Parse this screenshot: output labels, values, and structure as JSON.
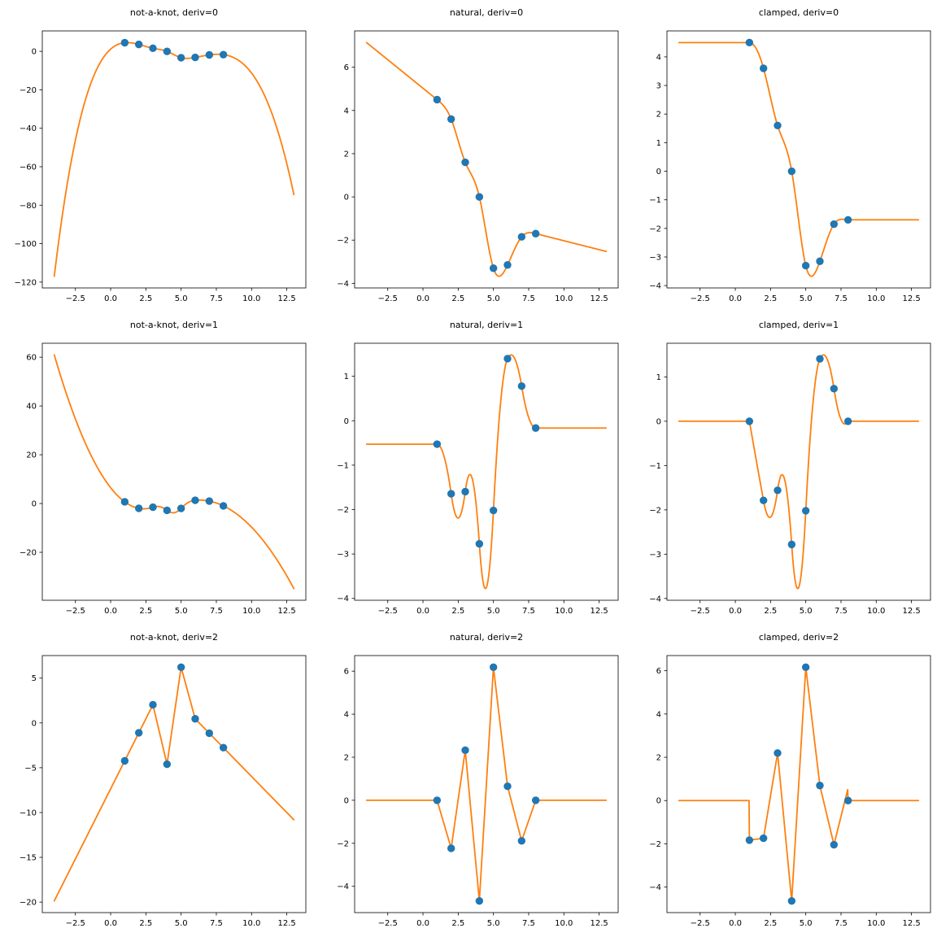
{
  "figure": {
    "background": "#ffffff",
    "rows": 3,
    "cols": 3,
    "description": "Cubic spline interpolation and its derivatives for three boundary conditions"
  },
  "style": {
    "line_color": "#ff7f0e",
    "marker_color": "#1f77b4",
    "spine_color": "#000000",
    "line_width": 1.8,
    "marker_radius": 4.7,
    "tick_length": 3.5
  },
  "spline": {
    "knots_x": [
      1,
      2,
      3,
      4,
      5,
      6,
      7,
      8
    ],
    "knots_y": [
      4.5,
      3.6,
      1.6,
      0.0,
      -3.3,
      -3.15,
      -1.85,
      -1.7
    ],
    "curve_x_range": [
      -4,
      13
    ],
    "boundary_conditions": [
      "not-a-knot",
      "natural",
      "clamped"
    ],
    "derivative_orders": [
      0,
      1,
      2
    ]
  },
  "xaxis": {
    "tick_values": [
      -2.5,
      0.0,
      2.5,
      5.0,
      7.5,
      10.0,
      12.5
    ],
    "tick_labels": [
      "−2.5",
      "0.0",
      "2.5",
      "5.0",
      "7.5",
      "10.0",
      "12.5"
    ]
  },
  "chart_data": [
    {
      "type": "line",
      "title": "not-a-knot, deriv=0",
      "bc": "not-a-knot",
      "deriv": 0,
      "points_x": [
        1,
        2,
        3,
        4,
        5,
        6,
        7,
        8
      ],
      "points_y": [
        4.5,
        3.6,
        1.6,
        0.0,
        -3.3,
        -3.15,
        -1.85,
        -1.7
      ],
      "curve_endpoints_y": [
        -117.0,
        -74.5
      ],
      "ytick_values": [
        0,
        -20,
        -40,
        -60,
        -80,
        -100,
        -120
      ],
      "ytick_labels": [
        "0",
        "−20",
        "−40",
        "−60",
        "−80",
        "−100",
        "−120"
      ]
    },
    {
      "type": "line",
      "title": "natural, deriv=0",
      "bc": "natural",
      "deriv": 0,
      "points_x": [
        1,
        2,
        3,
        4,
        5,
        6,
        7,
        8
      ],
      "points_y": [
        4.5,
        3.6,
        1.6,
        0.0,
        -3.3,
        -3.15,
        -1.85,
        -1.7
      ],
      "curve_endpoints_y": [
        7.2,
        -2.8
      ],
      "ytick_values": [
        6,
        4,
        2,
        0,
        -2,
        -4
      ],
      "ytick_labels": [
        "6",
        "4",
        "2",
        "0",
        "−2",
        "−4"
      ]
    },
    {
      "type": "line",
      "title": "clamped, deriv=0",
      "bc": "clamped",
      "deriv": 0,
      "points_x": [
        1,
        2,
        3,
        4,
        5,
        6,
        7,
        8
      ],
      "points_y": [
        4.5,
        3.6,
        1.6,
        0.0,
        -3.3,
        -3.15,
        -1.85,
        -1.7
      ],
      "curve_endpoints_y": [
        4.5,
        -1.7
      ],
      "ytick_values": [
        4,
        3,
        2,
        1,
        0,
        -1,
        -2,
        -3,
        -4
      ],
      "ytick_labels": [
        "4",
        "3",
        "2",
        "1",
        "0",
        "−1",
        "−2",
        "−3",
        "−4"
      ]
    },
    {
      "type": "line",
      "title": "not-a-knot, deriv=1",
      "bc": "not-a-knot",
      "deriv": 1,
      "points_x": [
        1,
        2,
        3,
        4,
        5,
        6,
        7,
        8
      ],
      "points_y": [
        0.69,
        -1.97,
        -1.51,
        -2.8,
        -2.0,
        1.34,
        0.99,
        -0.96
      ],
      "curve_endpoints_y": [
        61.0,
        -35.0
      ],
      "ytick_values": [
        60,
        40,
        20,
        0,
        -20
      ],
      "ytick_labels": [
        "60",
        "40",
        "20",
        "0",
        "−20"
      ]
    },
    {
      "type": "line",
      "title": "natural, deriv=1",
      "bc": "natural",
      "deriv": 1,
      "points_x": [
        1,
        2,
        3,
        4,
        5,
        6,
        7,
        8
      ],
      "points_y": [
        -0.53,
        -1.64,
        -1.6,
        -2.77,
        -2.02,
        1.4,
        0.78,
        -0.17
      ],
      "curve_endpoints_y": [
        -0.53,
        -0.17
      ],
      "ytick_values": [
        1,
        0,
        -1,
        -2,
        -3,
        -4
      ],
      "ytick_labels": [
        "1",
        "0",
        "−1",
        "−2",
        "−3",
        "−4"
      ]
    },
    {
      "type": "line",
      "title": "clamped, deriv=1",
      "bc": "clamped",
      "deriv": 1,
      "points_x": [
        1,
        2,
        3,
        4,
        5,
        6,
        7,
        8
      ],
      "points_y": [
        0.0,
        -1.79,
        -1.56,
        -2.78,
        -2.02,
        1.42,
        0.75,
        0.0
      ],
      "curve_endpoints_y": [
        0.0,
        0.0
      ],
      "ytick_values": [
        1,
        0,
        -1,
        -2,
        -3,
        -4
      ],
      "ytick_labels": [
        "1",
        "0",
        "−1",
        "−2",
        "−3",
        "−4"
      ]
    },
    {
      "type": "line",
      "title": "not-a-knot, deriv=2",
      "bc": "not-a-knot",
      "deriv": 2,
      "points_x": [
        1,
        2,
        3,
        4,
        5,
        6,
        7,
        8
      ],
      "points_y": [
        -4.23,
        -1.1,
        2.03,
        -4.61,
        6.21,
        0.46,
        -1.15,
        -2.76
      ],
      "curve_endpoints_y": [
        -19.9,
        -10.8
      ],
      "ytick_values": [
        5,
        0,
        -5,
        -10,
        -15,
        -20
      ],
      "ytick_labels": [
        "5",
        "0",
        "−5",
        "−10",
        "−15",
        "−20"
      ]
    },
    {
      "type": "line",
      "title": "natural, deriv=2",
      "bc": "natural",
      "deriv": 2,
      "points_x": [
        1,
        2,
        3,
        4,
        5,
        6,
        7,
        8
      ],
      "points_y": [
        0.0,
        -2.23,
        2.33,
        -4.68,
        6.18,
        0.66,
        -1.89,
        0.0
      ],
      "curve_endpoints_y": [
        0.0,
        0.0
      ],
      "ytick_values": [
        6,
        4,
        2,
        0,
        -2,
        -4
      ],
      "ytick_labels": [
        "6",
        "4",
        "2",
        "0",
        "−2",
        "−4"
      ]
    },
    {
      "type": "line",
      "title": "clamped, deriv=2",
      "bc": "clamped",
      "deriv": 2,
      "points_x": [
        1,
        2,
        3,
        4,
        5,
        6,
        7,
        8
      ],
      "points_y": [
        -1.83,
        -1.74,
        2.2,
        -4.64,
        6.16,
        0.7,
        -2.1,
        0.0
      ],
      "curve_endpoints_y": [
        0.0,
        0.0
      ],
      "ytick_values": [
        6,
        4,
        2,
        0,
        -2,
        -4
      ],
      "ytick_labels": [
        "6",
        "4",
        "2",
        "0",
        "−2",
        "−4"
      ]
    }
  ]
}
